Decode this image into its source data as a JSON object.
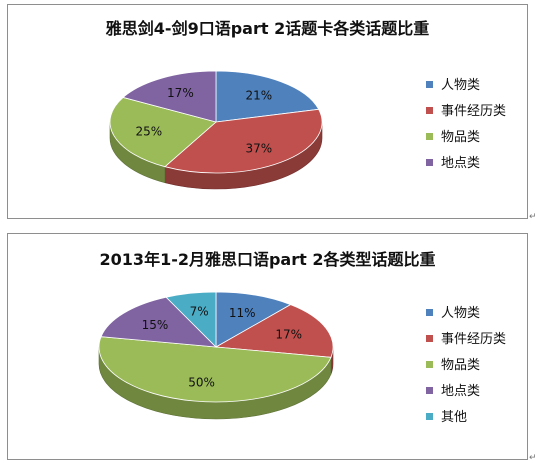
{
  "chart_data": [
    {
      "type": "pie",
      "title": "雅思剑4-剑9口语part  2话题卡各类话题比重",
      "categories": [
        "人物类",
        "事件经历类",
        "物品类",
        "地点类"
      ],
      "values": [
        21,
        37,
        25,
        17
      ],
      "labels": [
        "21%",
        "37%",
        "25%",
        "17%"
      ],
      "colors": [
        "#4F81BD",
        "#C0504D",
        "#9BBB59",
        "#8064A2"
      ],
      "legend": "right",
      "style": "3d"
    },
    {
      "type": "pie",
      "title": "2013年1-2月雅思口语part 2各类型话题比重",
      "categories": [
        "人物类",
        "事件经历类",
        "物品类",
        "地点类",
        "其他"
      ],
      "values": [
        11,
        17,
        50,
        15,
        7
      ],
      "labels": [
        "11%",
        "17%",
        "50%",
        "15%",
        "7%"
      ],
      "colors": [
        "#4F81BD",
        "#C0504D",
        "#9BBB59",
        "#8064A2",
        "#4BACC6"
      ],
      "legend": "right",
      "style": "3d"
    }
  ]
}
